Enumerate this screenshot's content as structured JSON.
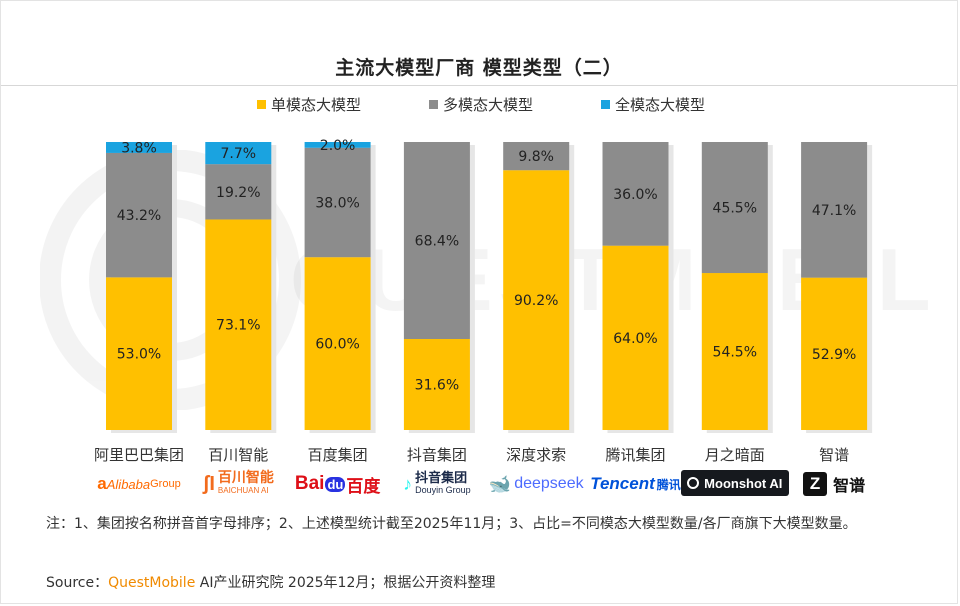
{
  "page": {
    "title": "主流大模型厂商 模型类型（二）"
  },
  "legend": [
    {
      "label": "单模态大模型",
      "color": "#FFC000"
    },
    {
      "label": "多模态大模型",
      "color": "#8C8C8C"
    },
    {
      "label": "全模态大模型",
      "color": "#1AA3E0"
    }
  ],
  "chart_data": {
    "type": "bar",
    "stacked": true,
    "percent": true,
    "ylim": [
      0,
      100
    ],
    "grid": false,
    "legend_position": "top",
    "categories": [
      "阿里巴巴集团",
      "百川智能",
      "百度集团",
      "抖音集团",
      "深度求索",
      "腾讯集团",
      "月之暗面",
      "智谱"
    ],
    "series": [
      {
        "name": "单模态大模型",
        "color": "#FFC000",
        "values": [
          53.0,
          73.1,
          60.0,
          31.6,
          90.2,
          64.0,
          54.5,
          52.9
        ],
        "labels": [
          "53.0%",
          "73.1%",
          "60.0%",
          "31.6%",
          "90.2%",
          "64.0%",
          "54.5%",
          "52.9%"
        ]
      },
      {
        "name": "多模态大模型",
        "color": "#8C8C8C",
        "values": [
          43.2,
          19.2,
          38.0,
          68.4,
          9.8,
          36.0,
          45.5,
          47.1
        ],
        "labels": [
          "43.2%",
          "19.2%",
          "38.0%",
          "68.4%",
          "9.8%",
          "36.0%",
          "45.5%",
          "47.1%"
        ]
      },
      {
        "name": "全模态大模型",
        "color": "#1AA3E0",
        "values": [
          3.8,
          7.7,
          2.0,
          0,
          0,
          0,
          0,
          0
        ],
        "labels": [
          "3.8%",
          "7.7%",
          "2.0%",
          "",
          "",
          "",
          "",
          ""
        ]
      }
    ]
  },
  "logos": [
    {
      "main": "Alibaba",
      "sub": "Group",
      "color": "#FF6A00"
    },
    {
      "main": "百川智能",
      "sub": "BAICHUAN AI",
      "color": "#F26B1D"
    },
    {
      "main": "Bai",
      "mid": "du",
      "tail": "百度",
      "color": "#DE0F17",
      "accent": "#2932E1"
    },
    {
      "main": "抖音集团",
      "sub": "Douyin Group",
      "color": "#1C2B4A"
    },
    {
      "main": "deepseek",
      "color": "#4D6BFE"
    },
    {
      "main": "Tencent",
      "tail": "腾讯",
      "color": "#0052D9"
    },
    {
      "main": "Moonshot AI",
      "color": "#ffffff",
      "bg": "#16191E"
    },
    {
      "main": "Z",
      "tail": "智谱",
      "color": "#111111"
    }
  ],
  "watermark": "QUESTMOBILE",
  "note": "注：1、集团按名称拼音首字母排序；2、上述模型统计截至2025年11月；3、占比=不同模态大模型数量/各厂商旗下大模型数量。",
  "source": {
    "prefix": "Source：",
    "brand": "QuestMobile",
    "suffix": " AI产业研究院 2025年12月；根据公开资料整理"
  }
}
